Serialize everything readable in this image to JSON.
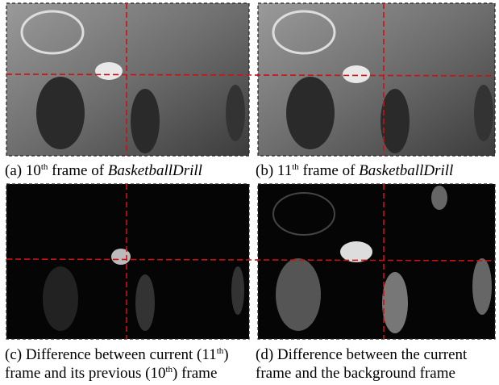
{
  "panels": [
    {
      "caption": {
        "lines": [
          {
            "before": "(a) 10",
            "sup": "th",
            "after": " frame of ",
            "italic": "BasketballDrill"
          }
        ]
      }
    },
    {
      "caption": {
        "lines": [
          {
            "before": "(b) 11",
            "sup": "th",
            "after": " frame of ",
            "italic": "BasketballDrill"
          }
        ]
      }
    },
    {
      "caption": {
        "lines": [
          {
            "before": "(c) Difference between current (11",
            "sup": "th",
            "after": ")"
          },
          {
            "before": "frame and its previous (10",
            "sup": "th",
            "after": ") frame"
          }
        ]
      }
    },
    {
      "caption": {
        "lines": [
          {
            "before": "(d) Difference between the current"
          },
          {
            "before": "frame and the background frame"
          }
        ]
      }
    }
  ]
}
